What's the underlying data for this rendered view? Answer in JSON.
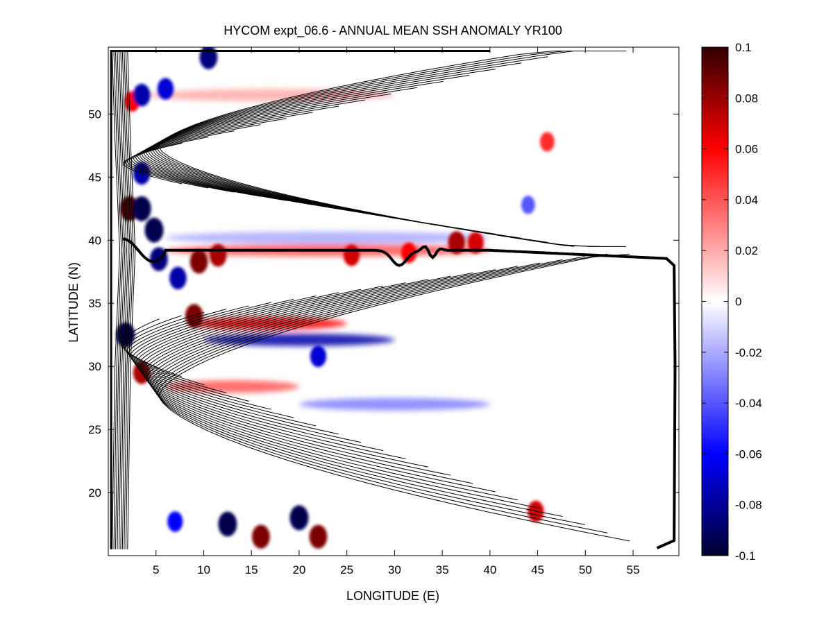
{
  "chart_data": {
    "type": "heatmap",
    "title": "HYCOM expt_06.6 - ANNUAL MEAN SSH ANOMALY YR100",
    "xlabel": "LONGITUDE (E)",
    "ylabel": "LATITUDE (N)",
    "xlim": [
      0,
      59.8
    ],
    "ylim": [
      15,
      55.3
    ],
    "xticks": [
      5,
      10,
      15,
      20,
      25,
      30,
      35,
      40,
      45,
      50,
      55
    ],
    "yticks": [
      20,
      25,
      30,
      35,
      40,
      45,
      50
    ],
    "colorbar": {
      "min": -0.1,
      "max": 0.1,
      "ticks": [
        -0.1,
        -0.08,
        -0.06,
        -0.04,
        -0.02,
        0,
        0.02,
        0.04,
        0.06,
        0.08,
        0.1
      ],
      "tick_labels": [
        "-0.1",
        "-0.08",
        "-0.06",
        "-0.04",
        "-0.02",
        "0",
        "0.02",
        "0.04",
        "0.06",
        "0.08",
        "0.1"
      ],
      "colormap": "blue-white-red"
    },
    "anomalies": [
      {
        "lon": 2.2,
        "lat": 42.5,
        "value": 0.1
      },
      {
        "lon": 3.5,
        "lat": 42.5,
        "value": -0.1
      },
      {
        "lon": 4.8,
        "lat": 40.8,
        "value": -0.1
      },
      {
        "lon": 5.3,
        "lat": 38.5,
        "value": -0.09
      },
      {
        "lon": 7.3,
        "lat": 37.0,
        "value": -0.08
      },
      {
        "lon": 9.5,
        "lat": 38.3,
        "value": 0.09
      },
      {
        "lon": 11.5,
        "lat": 38.8,
        "value": 0.08
      },
      {
        "lon": 9.0,
        "lat": 34.0,
        "value": 0.09
      },
      {
        "lon": 1.8,
        "lat": 32.5,
        "value": -0.1
      },
      {
        "lon": 3.5,
        "lat": 29.5,
        "value": 0.08
      },
      {
        "lon": 2.5,
        "lat": 51.0,
        "value": 0.06
      },
      {
        "lon": 3.5,
        "lat": 51.5,
        "value": -0.08
      },
      {
        "lon": 6.0,
        "lat": 52.0,
        "value": -0.07
      },
      {
        "lon": 10.5,
        "lat": 54.5,
        "value": -0.09
      },
      {
        "lon": 3.5,
        "lat": 45.3,
        "value": -0.08
      },
      {
        "lon": 25.5,
        "lat": 38.8,
        "value": 0.07
      },
      {
        "lon": 31.5,
        "lat": 39.0,
        "value": 0.06
      },
      {
        "lon": 36.5,
        "lat": 39.8,
        "value": 0.08
      },
      {
        "lon": 38.5,
        "lat": 39.8,
        "value": 0.07
      },
      {
        "lon": 46.0,
        "lat": 47.8,
        "value": 0.05
      },
      {
        "lon": 44.0,
        "lat": 42.8,
        "value": -0.04
      },
      {
        "lon": 22.0,
        "lat": 30.8,
        "value": -0.07
      },
      {
        "lon": 12.5,
        "lat": 17.5,
        "value": -0.1
      },
      {
        "lon": 20.0,
        "lat": 18.0,
        "value": -0.1
      },
      {
        "lon": 16.0,
        "lat": 16.5,
        "value": 0.09
      },
      {
        "lon": 22.0,
        "lat": 16.5,
        "value": 0.09
      },
      {
        "lon": 44.8,
        "lat": 18.5,
        "value": 0.07
      },
      {
        "lon": 7.0,
        "lat": 17.7,
        "value": -0.06
      }
    ],
    "bands": [
      {
        "lat": 33.4,
        "lon_start": 8.5,
        "lon_end": 25.0,
        "value": 0.06
      },
      {
        "lat": 32.1,
        "lon_start": 10.0,
        "lon_end": 30.0,
        "value": -0.08
      },
      {
        "lat": 39.2,
        "lon_start": 6.0,
        "lon_end": 40.0,
        "value": 0.04
      },
      {
        "lat": 40.2,
        "lon_start": 6.0,
        "lon_end": 40.0,
        "value": -0.02
      },
      {
        "lat": 28.4,
        "lon_start": 6.0,
        "lon_end": 20.0,
        "value": 0.04
      },
      {
        "lat": 27.0,
        "lon_start": 20.0,
        "lon_end": 40.0,
        "value": -0.03
      },
      {
        "lat": 51.5,
        "lon_start": 4.0,
        "lon_end": 30.0,
        "value": 0.02
      }
    ],
    "contours": {
      "description": "mean SSH contours (thin black) with thick zero contour along ~39N",
      "zero_contour_lat": 39.2
    }
  }
}
